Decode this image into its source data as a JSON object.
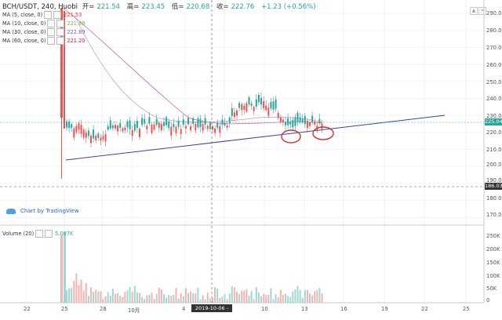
{
  "header": {
    "symbol": "BCH/USDT, 240, Huobi",
    "open_label": "开=",
    "open": "221.54",
    "high_label": "高=",
    "high": "223.45",
    "low_label": "低=",
    "low": "220.68",
    "close_label": "收=",
    "close": "222.76",
    "change": "+1.23 (+0.56%)"
  },
  "indicators": [
    {
      "label": "MA (5, close, 0)",
      "value": "221.53",
      "color": "#e53935"
    },
    {
      "label": "MA (10, close, 0)",
      "value": "221.89",
      "color": "#7cb342"
    },
    {
      "label": "MA (30, close, 0)",
      "value": "222.89",
      "color": "#7e57c2"
    },
    {
      "label": "MA (60, close, 0)",
      "value": "221.20",
      "color": "#c2185b"
    }
  ],
  "volume": {
    "label": "Volume (20)",
    "value": "5.087K"
  },
  "attribution": "Chart by TradingView",
  "price_axis": [
    "290.00",
    "280.00",
    "270.00",
    "260.00",
    "250.00",
    "240.00",
    "230.00",
    "220.00",
    "210.00",
    "200.00",
    "190.00",
    "180.00",
    "170.00"
  ],
  "volume_axis": [
    "250K",
    "200K",
    "150K",
    "100K",
    "50K",
    "0"
  ],
  "time_axis": [
    "22",
    "25",
    "28",
    "10月",
    "4",
    "7",
    "10",
    "13",
    "16",
    "19",
    "22",
    "25"
  ],
  "current_price": "225.04",
  "crosshair_price": "186.03",
  "crosshair_time": "2019-10-06 - 04:00",
  "colors": {
    "up": "#26a69a",
    "down": "#ef5350",
    "trend": "#3f3fa8",
    "circle": "#d32f2f"
  },
  "icons": [
    "cloud-icon",
    "settings-icon",
    "close-icon"
  ]
}
